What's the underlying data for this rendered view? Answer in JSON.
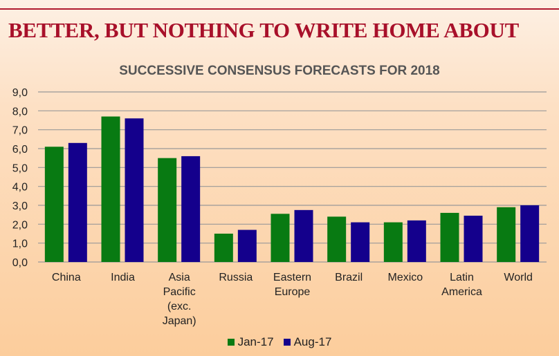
{
  "headline": "BETTER, BUT NOTHING TO WRITE HOME ABOUT",
  "chart_data": {
    "type": "bar",
    "title": "SUCCESSIVE CONSENSUS FORECASTS FOR 2018",
    "xlabel": "",
    "ylabel": "",
    "ylim": [
      0,
      9
    ],
    "yticks": [
      "0,0",
      "1,0",
      "2,0",
      "3,0",
      "4,0",
      "5,0",
      "6,0",
      "7,0",
      "8,0",
      "9,0"
    ],
    "grid": true,
    "legend_position": "bottom",
    "categories": [
      [
        "China"
      ],
      [
        "India"
      ],
      [
        "Asia",
        "Pacific",
        "(exc.",
        "Japan)"
      ],
      [
        "Russia"
      ],
      [
        "Eastern",
        "Europe"
      ],
      [
        "Brazil"
      ],
      [
        "Mexico"
      ],
      [
        "Latin",
        "America"
      ],
      [
        "World"
      ]
    ],
    "series": [
      {
        "name": "Jan-17",
        "color": "#087a12",
        "values": [
          6.1,
          7.7,
          5.5,
          1.5,
          2.55,
          2.4,
          2.1,
          2.6,
          2.9
        ]
      },
      {
        "name": "Aug-17",
        "color": "#14008c",
        "values": [
          6.3,
          7.6,
          5.6,
          1.7,
          2.75,
          2.1,
          2.2,
          2.45,
          3.0
        ]
      }
    ]
  }
}
